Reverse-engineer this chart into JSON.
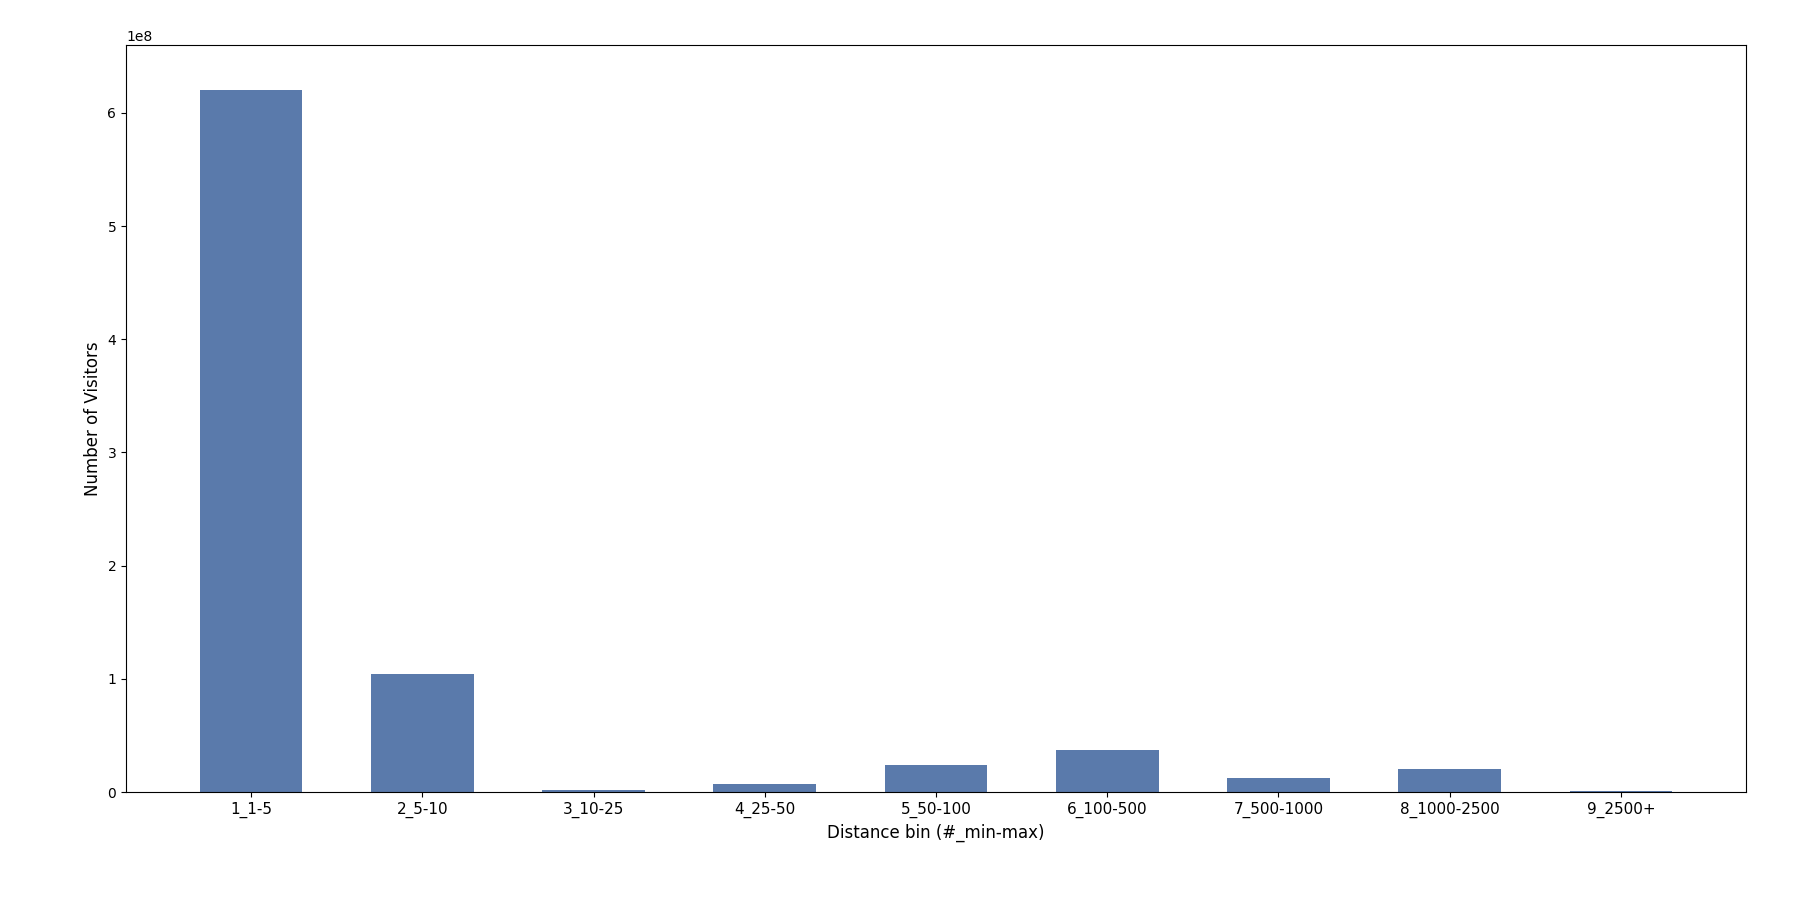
{
  "categories": [
    "1_1-5",
    "2_5-10",
    "3_10-25",
    "4_25-50",
    "5_50-100",
    "6_100-500",
    "7_500-1000",
    "8_1000-2500",
    "9_2500+"
  ],
  "values": [
    620000000,
    104000000,
    1500000,
    7000000,
    24000000,
    37000000,
    12000000,
    20000000,
    500000
  ],
  "bar_color": "#5a7aab",
  "xlabel": "Distance bin (#_min-max)",
  "ylabel": "Number of Visitors",
  "figsize": [
    18.0,
    9.0
  ],
  "dpi": 100,
  "ylim": [
    0,
    660000000
  ]
}
